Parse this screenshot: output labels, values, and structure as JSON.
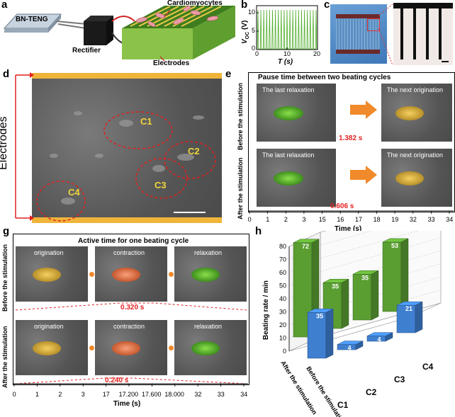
{
  "panels": {
    "a": "a",
    "b": "b",
    "c": "c",
    "d": "d",
    "e": "e",
    "g": "g",
    "h": "h"
  },
  "panel_a": {
    "teng": "BN-TENG",
    "cardio": "Cardiomyocytes",
    "rectifier": "Rectifier",
    "electrodes": "Electrodes"
  },
  "panel_b": {
    "ylabel_main": "V",
    "ylabel_sub": "OC",
    "ylabel_unit": " (V)",
    "xlabel": "T (s)",
    "yticks": [
      "10",
      "5",
      "0"
    ],
    "xticks": [
      "0",
      "10",
      "20"
    ]
  },
  "panel_d": {
    "electrodes": "Electrodes",
    "cells": [
      "C1",
      "C2",
      "C3",
      "C4"
    ]
  },
  "panel_e": {
    "title": "Pause time between two beating cycles",
    "last_relax": "The last relaxation",
    "next_orig": "The next origination",
    "row_before": "Before the stimulation",
    "row_after": "After the stimulation",
    "before_time": "1.382 s",
    "after_time": "0.606 s",
    "xticks": [
      "0",
      "1",
      "2",
      "3",
      "15",
      "16",
      "17",
      "18",
      "19",
      "32",
      "33",
      "34"
    ],
    "xlabel": "Time (s)"
  },
  "panel_g": {
    "title": "Active time for one beating cycle",
    "stages": [
      "origination",
      "contraction",
      "relaxation"
    ],
    "row_before": "Before the stimulation",
    "row_after": "After the stimulation",
    "before_time": "0.320 s",
    "after_time": "0.240 s",
    "xticks": [
      "0",
      "1",
      "2",
      "3",
      "17",
      "17.200",
      "17.600",
      "18.000",
      "32",
      "33",
      "34"
    ],
    "xlabel": "Time (s)"
  },
  "chart_data": {
    "type": "bar3d",
    "ylabel": "Beating rate / min",
    "ylim": [
      0,
      80
    ],
    "yticks": [
      "0",
      "10",
      "20",
      "30",
      "40",
      "50",
      "60",
      "70",
      "80"
    ],
    "categories": [
      "C1",
      "C2",
      "C3",
      "C4"
    ],
    "series": [
      {
        "name": "After the stimulation",
        "color": "#5a9e32",
        "values": [
          72,
          35,
          35,
          53
        ]
      },
      {
        "name": "Before the stimulation",
        "color": "#3f7fd0",
        "values": [
          35,
          4,
          4,
          21
        ]
      }
    ],
    "row_labels": [
      "After the stimulation",
      "Before the stimulation"
    ]
  }
}
